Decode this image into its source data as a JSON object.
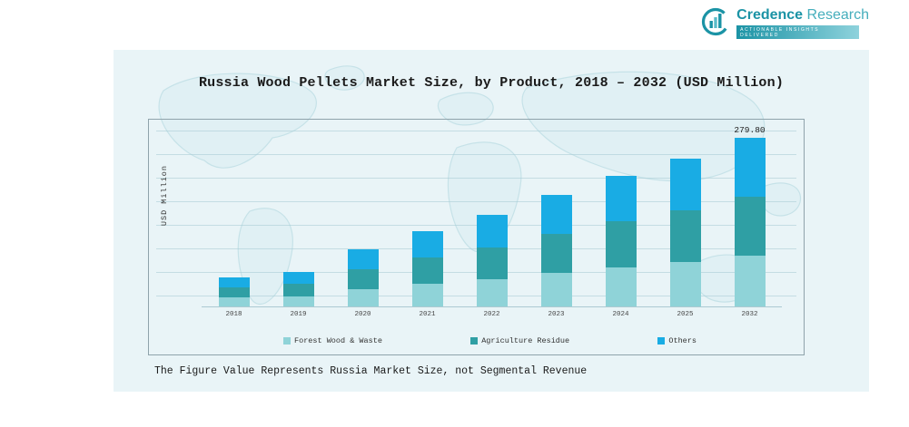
{
  "logo": {
    "brand_primary": "Credence",
    "brand_secondary": " Research",
    "tagline": "Actionable Insights Delivered"
  },
  "chart": {
    "title": "Russia Wood Pellets Market Size, by Product, 2018 – 2032 (USD Million)",
    "ylabel": "USD Million",
    "footnote": "The Figure Value Represents Russia Market Size, not Segmental Revenue"
  },
  "chart_data": {
    "type": "bar",
    "stacked": true,
    "title": "Russia Wood Pellets Market Size, by Product, 2018 – 2032 (USD Million)",
    "xlabel": "",
    "ylabel": "USD Million",
    "categories": [
      "2018",
      "2019",
      "2020",
      "2021",
      "2022",
      "2023",
      "2024",
      "2025",
      "2032"
    ],
    "series": [
      {
        "name": "Forest Wood & Waste",
        "color": "#8fd3d8",
        "values": [
          14.4,
          17.1,
          28.2,
          37.5,
          45.3,
          55.5,
          64.8,
          73.5,
          83.9
        ]
      },
      {
        "name": "Agriculture Residue",
        "color": "#2f9fa4",
        "values": [
          16.8,
          20.0,
          32.9,
          43.8,
          52.9,
          64.8,
          75.6,
          85.8,
          97.9
        ]
      },
      {
        "name": "Others",
        "color": "#19ace4",
        "values": [
          16.8,
          19.9,
          32.9,
          43.7,
          52.8,
          64.7,
          75.6,
          85.7,
          98.0
        ]
      }
    ],
    "totals": [
      48,
      57,
      94,
      125,
      151,
      185,
      216,
      245,
      279.8
    ],
    "annotations": [
      {
        "category": "2032",
        "text": "279.80"
      }
    ],
    "ylim": [
      0,
      300
    ],
    "grid": true,
    "legend_position": "bottom"
  },
  "colors": {
    "panel_background": "#e9f4f7",
    "map_stroke": "#c6e2e8",
    "brand_teal": "#1b93a5",
    "forest_wood": "#8fd3d8",
    "agriculture_residue": "#2f9fa4",
    "others": "#19ace4"
  }
}
